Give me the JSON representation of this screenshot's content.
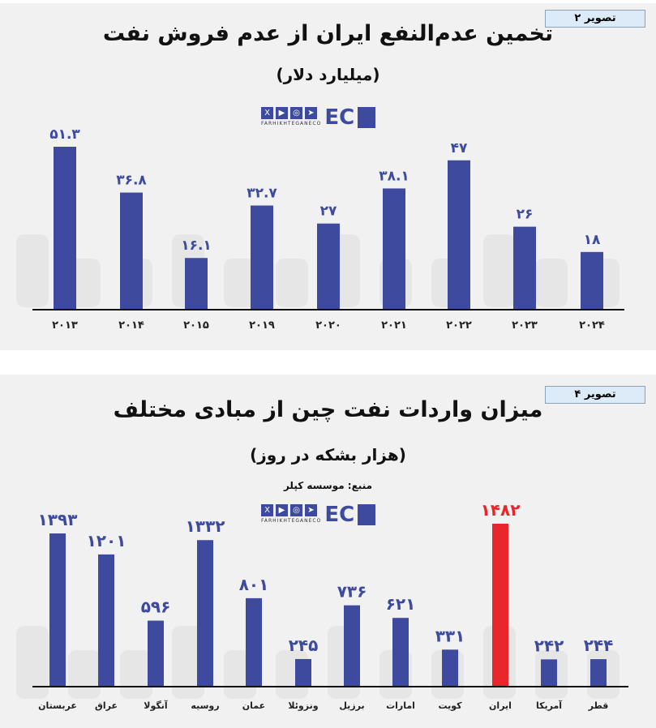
{
  "chart_data": [
    {
      "type": "bar",
      "figure_label": "تصویر ۲",
      "title": "تخمین عدم‌النفع ایران از عدم فروش نفت",
      "subtitle": "(میلیارد دلار)",
      "categories": [
        "۲۰۱۳",
        "۲۰۱۴",
        "۲۰۱۵",
        "۲۰۱۹",
        "۲۰۲۰",
        "۲۰۲۱",
        "۲۰۲۲",
        "۲۰۲۳",
        "۲۰۲۴"
      ],
      "values": [
        51.3,
        36.8,
        16.1,
        32.7,
        27,
        38.1,
        47,
        26,
        18
      ],
      "value_labels": [
        "۵۱.۳",
        "۳۶.۸",
        "۱۶.۱",
        "۳۲.۷",
        "۲۷",
        "۳۸.۱",
        "۴۷",
        "۲۶",
        "۱۸"
      ],
      "bar_color": "#3d4a9e",
      "grid": false
    },
    {
      "type": "bar",
      "figure_label": "تصویر ۴",
      "title": "میزان واردات نفت چین از مبادی مختلف",
      "subtitle": "(هزار بشکه در روز)",
      "source": "منبع: موسسه کپلر",
      "categories": [
        "عربستان",
        "عراق",
        "آنگولا",
        "روسیه",
        "عمان",
        "ونزوئلا",
        "برزیل",
        "امارات",
        "کویت",
        "ایران",
        "آمریکا",
        "قطر"
      ],
      "values": [
        1393,
        1201,
        596,
        1332,
        801,
        245,
        736,
        621,
        331,
        1482,
        242,
        244
      ],
      "value_labels": [
        "۱۳۹۳",
        "۱۲۰۱",
        "۵۹۶",
        "۱۳۳۲",
        "۸۰۱",
        "۲۴۵",
        "۷۳۶",
        "۶۲۱",
        "۳۳۱",
        "۱۴۸۲",
        "۲۴۲",
        "۲۴۴"
      ],
      "bar_color": "#3d4a9e",
      "highlight": {
        "category": "ایران",
        "color": "#e8262b"
      },
      "grid": false
    }
  ],
  "branding": {
    "handle": "FARHIKHTEGANECO",
    "logo": "EC",
    "watermark_latin": "farhikhtegan",
    "icons": [
      "x-icon",
      "youtube-icon",
      "instagram-icon",
      "telegram-icon"
    ]
  }
}
